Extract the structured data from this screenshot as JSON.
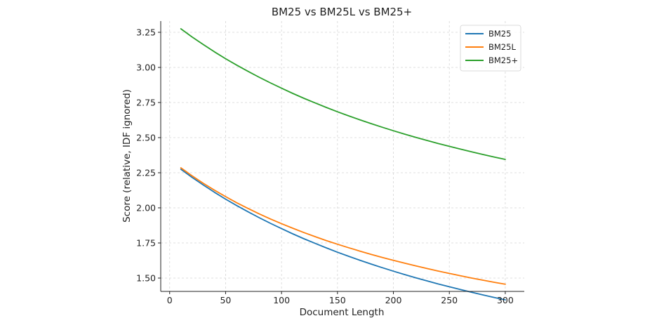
{
  "chart_data": {
    "type": "line",
    "title": "BM25 vs BM25L vs BM25+",
    "xlabel": "Document Length",
    "ylabel": "Score (relative, IDF ignored)",
    "xlim": [
      -8,
      317
    ],
    "ylim": [
      1.405,
      3.33
    ],
    "xticks": [
      0,
      50,
      100,
      150,
      200,
      250,
      300
    ],
    "yticks": [
      1.5,
      1.75,
      2.0,
      2.25,
      2.5,
      2.75,
      3.0,
      3.25
    ],
    "grid": true,
    "legend_position": "top-right",
    "x": [
      10,
      20,
      30,
      40,
      50,
      60,
      70,
      80,
      90,
      100,
      110,
      120,
      130,
      140,
      150,
      160,
      170,
      180,
      190,
      200,
      210,
      220,
      230,
      240,
      250,
      260,
      270,
      280,
      290,
      300
    ],
    "series": [
      {
        "name": "BM25",
        "color": "#1f77b4",
        "values": [
          2.275,
          2.217,
          2.163,
          2.111,
          2.062,
          2.016,
          1.972,
          1.93,
          1.89,
          1.852,
          1.815,
          1.78,
          1.747,
          1.715,
          1.684,
          1.655,
          1.627,
          1.6,
          1.574,
          1.549,
          1.525,
          1.502,
          1.48,
          1.458,
          1.438,
          1.418,
          1.399,
          1.38,
          1.362,
          1.345
        ]
      },
      {
        "name": "BM25L",
        "color": "#ff7f0e",
        "values": [
          2.285,
          2.228,
          2.175,
          2.126,
          2.08,
          2.036,
          1.996,
          1.957,
          1.921,
          1.887,
          1.855,
          1.824,
          1.795,
          1.767,
          1.741,
          1.716,
          1.692,
          1.669,
          1.647,
          1.626,
          1.606,
          1.587,
          1.568,
          1.55,
          1.533,
          1.516,
          1.5,
          1.485,
          1.47,
          1.456
        ]
      },
      {
        "name": "BM25+",
        "color": "#2ca02c",
        "values": [
          3.275,
          3.217,
          3.163,
          3.111,
          3.062,
          3.016,
          2.972,
          2.93,
          2.89,
          2.852,
          2.815,
          2.78,
          2.747,
          2.715,
          2.684,
          2.655,
          2.627,
          2.6,
          2.574,
          2.549,
          2.525,
          2.502,
          2.48,
          2.458,
          2.438,
          2.418,
          2.399,
          2.38,
          2.362,
          2.345
        ]
      }
    ]
  }
}
